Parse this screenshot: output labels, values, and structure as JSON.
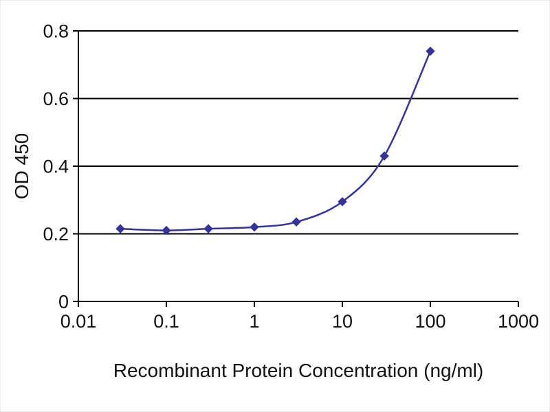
{
  "chart_data": {
    "type": "line",
    "title": "",
    "xlabel": "Recombinant Protein Concentration (ng/ml)",
    "ylabel": "OD 450",
    "xscale": "log",
    "xlim": [
      0.01,
      1000
    ],
    "ylim": [
      0,
      0.8
    ],
    "x_ticks": [
      0.01,
      0.1,
      1,
      10,
      100,
      1000
    ],
    "x_tick_labels": [
      "0.01",
      "0.1",
      "1",
      "10",
      "100",
      "1000"
    ],
    "y_ticks": [
      0,
      0.2,
      0.4,
      0.6,
      0.8
    ],
    "y_tick_labels": [
      "0",
      "0.2",
      "0.4",
      "0.6",
      "0.8"
    ],
    "grid": "horizontal",
    "legend": null,
    "series": [
      {
        "name": "OD 450",
        "x": [
          0.03,
          0.1,
          0.3,
          1,
          3,
          10,
          30,
          100
        ],
        "y": [
          0.215,
          0.21,
          0.215,
          0.22,
          0.235,
          0.295,
          0.43,
          0.74
        ],
        "color": "#333399",
        "marker": "diamond",
        "smooth": true
      }
    ],
    "colors": {
      "grid": "#000000",
      "axis": "#000000",
      "text": "#111111",
      "background": "#ffffff"
    }
  }
}
